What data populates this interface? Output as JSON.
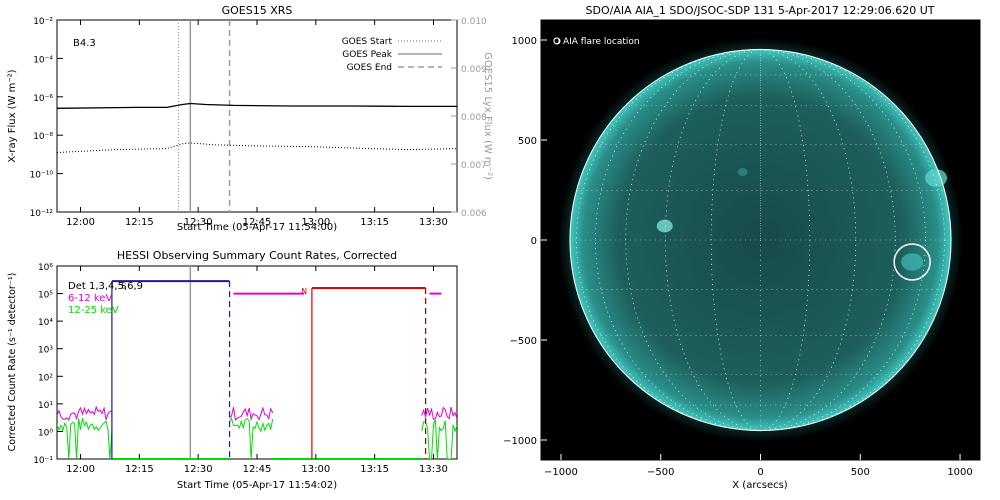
{
  "colors": {
    "goes_line": "#000000",
    "blue": "#1a1aa8",
    "magenta": "#e000e0",
    "green": "#00e000",
    "red": "#e00000",
    "gray": "#9a9a9a",
    "sun": "#2aa6a0"
  },
  "chart_data": [
    {
      "type": "line",
      "title": "GOES15 XRS",
      "xlabel": "Start Time (05-Apr-17 11:54:00)",
      "ylabel": "X-ray Flux (W m⁻²)",
      "ylabel_right": "GOES15 Lyx Flux (W m⁻²)",
      "annotation": "B4.3",
      "x_ticks": [
        "12:00",
        "12:15",
        "12:30",
        "12:45",
        "13:00",
        "13:15",
        "13:30"
      ],
      "x_tick_minutes": [
        6,
        21,
        36,
        51,
        66,
        81,
        96
      ],
      "xlim_minutes": [
        0,
        102
      ],
      "yscale": "log",
      "y_ticks": [
        "10⁻²",
        "10⁻⁴",
        "10⁻⁶",
        "10⁻⁸",
        "10⁻¹⁰",
        "10⁻¹²"
      ],
      "y_exponents": [
        -2,
        -4,
        -6,
        -8,
        -10,
        -12
      ],
      "ylim_exp": [
        -12,
        -2
      ],
      "right_ticks": [
        "0.010",
        "0.009",
        "0.008",
        "0.007",
        "0.006"
      ],
      "right_values": [
        0.01,
        0.009,
        0.008,
        0.007,
        0.006
      ],
      "right_ylim": [
        0.006,
        0.01
      ],
      "legend": [
        {
          "label": "GOES Start",
          "style": "dotted"
        },
        {
          "label": "GOES Peak",
          "style": "solid"
        },
        {
          "label": "GOES End",
          "style": "dashed"
        }
      ],
      "markers_minutes": {
        "start": 31,
        "peak": 34,
        "end": 44
      },
      "series": [
        {
          "style": "solid",
          "x": [
            0,
            20,
            28,
            32,
            34,
            38,
            45,
            60,
            75,
            90,
            102
          ],
          "y_exp": [
            -6.6,
            -6.55,
            -6.55,
            -6.4,
            -6.35,
            -6.4,
            -6.45,
            -6.48,
            -6.48,
            -6.5,
            -6.5
          ]
        },
        {
          "style": "dotted",
          "x": [
            0,
            15,
            28,
            32,
            34,
            40,
            50,
            65,
            80,
            90,
            102
          ],
          "y_exp": [
            -8.9,
            -8.75,
            -8.7,
            -8.45,
            -8.4,
            -8.5,
            -8.55,
            -8.6,
            -8.7,
            -8.75,
            -8.7
          ]
        }
      ]
    },
    {
      "type": "line",
      "title": "HESSI Observing Summary Count Rates, Corrected",
      "xlabel": "Start Time (05-Apr-17 11:54:02)",
      "ylabel": "Corrected Count Rate (s⁻¹ detector⁻¹)",
      "x_ticks": [
        "12:00",
        "12:15",
        "12:30",
        "12:45",
        "13:00",
        "13:15",
        "13:30"
      ],
      "x_tick_minutes": [
        6,
        21,
        36,
        51,
        66,
        81,
        96
      ],
      "xlim_minutes": [
        0,
        102
      ],
      "yscale": "log",
      "y_ticks": [
        "10⁶",
        "10⁵",
        "10⁴",
        "10³",
        "10²",
        "10¹",
        "10⁰",
        "10⁻¹"
      ],
      "y_exponents": [
        6,
        5,
        4,
        3,
        2,
        1,
        0,
        -1
      ],
      "ylim_exp": [
        -1,
        6
      ],
      "legend": [
        {
          "label": "Det 1,3,4,5,6,9",
          "color": "#000000"
        },
        {
          "label": "6-12 keV",
          "color": "#e000e0"
        },
        {
          "label": "12-25 keV",
          "color": "#00e000"
        }
      ],
      "flags": [
        {
          "label": "S",
          "x": 17,
          "y_exp": 5.3
        },
        {
          "label": "N",
          "x": 63,
          "y_exp": 5.1
        }
      ],
      "markers_minutes": {
        "blue_solid": 14,
        "gray": 34,
        "blue_dashed": 44,
        "red_solid": 65,
        "red_dashed": 94
      },
      "bars": [
        {
          "color": "#1a1aa8",
          "x0": 14,
          "x1": 44,
          "y_exp": 5.45
        },
        {
          "color": "#e000e0",
          "x0": 45,
          "x1": 63,
          "y_exp": 5.0
        },
        {
          "color": "#e00000",
          "x0": 65,
          "x1": 94,
          "y_exp": 5.2
        },
        {
          "color": "#e000e0",
          "x0": 95,
          "x1": 98,
          "y_exp": 5.0
        }
      ]
    },
    {
      "type": "heatmap",
      "title": "SDO/AIA AIA_1 SDO/JSOC-SDP 131   5-Apr-2017 12:29:06.620 UT",
      "xlabel": "X (arcsecs)",
      "legend": "O AIA flare location",
      "x_ticks": [
        "−1000",
        "−500",
        "0",
        "500",
        "1000"
      ],
      "x_values": [
        -1000,
        -500,
        0,
        500,
        1000
      ],
      "y_ticks": [
        "1000",
        "500",
        "0",
        "−500",
        "−1000"
      ],
      "y_values": [
        1000,
        500,
        0,
        -500,
        -1000
      ],
      "xlim": [
        -1100,
        1100
      ],
      "ylim": [
        -1100,
        1100
      ],
      "limb_radius_arcsec": 955,
      "flare_location": {
        "x": 760,
        "y": -110,
        "r": 90
      }
    }
  ]
}
